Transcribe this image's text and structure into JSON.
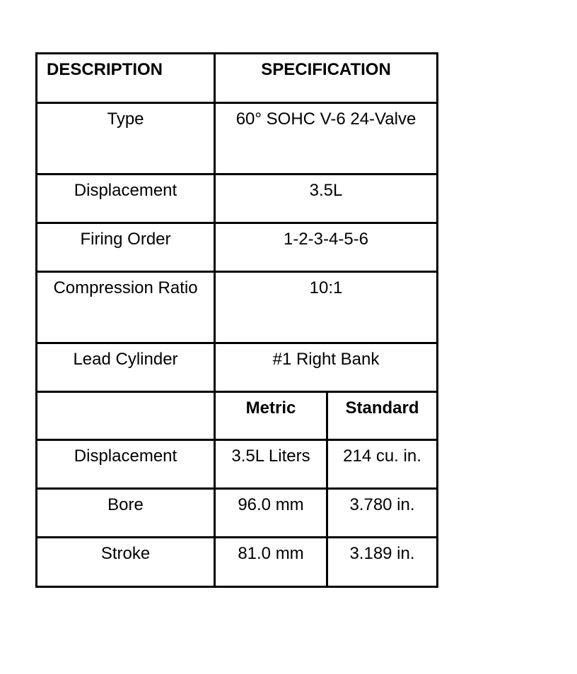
{
  "table": {
    "headers": {
      "description": "DESCRIPTION",
      "specification": "SPECIFICATION"
    },
    "rows": [
      {
        "label": "Type",
        "value": "60° SOHC V-6 24-Valve"
      },
      {
        "label": "Displacement",
        "value": "3.5L"
      },
      {
        "label": "Firing Order",
        "value": "1-2-3-4-5-6"
      },
      {
        "label": "Compression Ratio",
        "value": "10:1"
      },
      {
        "label": "Lead Cylinder",
        "value": "#1 Right Bank"
      }
    ],
    "sub_headers": {
      "metric": "Metric",
      "standard": "Standard"
    },
    "sub_rows": [
      {
        "label": "Displacement",
        "metric": "3.5L Liters",
        "standard": "214 cu. in."
      },
      {
        "label": "Bore",
        "metric": "96.0 mm",
        "standard": "3.780 in."
      },
      {
        "label": "Stroke",
        "metric": "81.0 mm",
        "standard": "3.189 in."
      }
    ]
  }
}
